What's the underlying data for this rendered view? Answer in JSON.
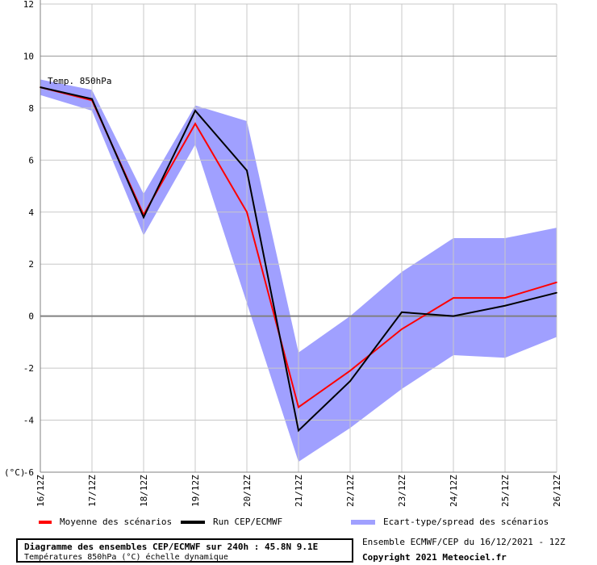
{
  "chart_data": {
    "type": "line",
    "series_label": "Temp. 850hPa",
    "y_unit_label": "(°C)",
    "categories": [
      "16/12Z",
      "17/12Z",
      "18/12Z",
      "19/12Z",
      "20/12Z",
      "21/12Z",
      "22/12Z",
      "23/12Z",
      "24/12Z",
      "25/12Z",
      "26/12Z"
    ],
    "ylim": [
      -6,
      12
    ],
    "yticks": [
      -6,
      -4,
      -2,
      0,
      2,
      4,
      6,
      8,
      10,
      12
    ],
    "grid": true,
    "series": [
      {
        "name": "Moyenne des scénarios",
        "color": "#ff0000",
        "values": [
          8.8,
          8.3,
          3.9,
          7.4,
          4.0,
          -3.5,
          -2.1,
          -0.5,
          0.7,
          0.7,
          1.3
        ]
      },
      {
        "name": "Run CEP/ECMWF",
        "color": "#000000",
        "values": [
          8.8,
          8.35,
          3.8,
          7.9,
          5.6,
          -4.4,
          -2.5,
          0.15,
          0.0,
          0.4,
          0.9
        ]
      }
    ],
    "band": {
      "name": "Ecart-type/spread des scénarios",
      "color": "#a0a0ff",
      "upper": [
        9.1,
        8.7,
        4.7,
        8.1,
        7.5,
        -1.4,
        0.0,
        1.7,
        3.0,
        3.0,
        3.4
      ],
      "lower": [
        8.5,
        7.9,
        3.1,
        6.6,
        0.5,
        -5.6,
        -4.3,
        -2.8,
        -1.5,
        -1.6,
        -0.8
      ]
    }
  },
  "footer": {
    "title": "Diagramme des ensembles CEP/ECMWF sur 240h : 45.8N 9.1E",
    "subtitle": "Températures 850hPa (°C) échelle dynamique",
    "run_info": "Ensemble ECMWF/CEP du 16/12/2021 - 12Z",
    "copyright": "Copyright 2021 Meteociel.fr"
  }
}
